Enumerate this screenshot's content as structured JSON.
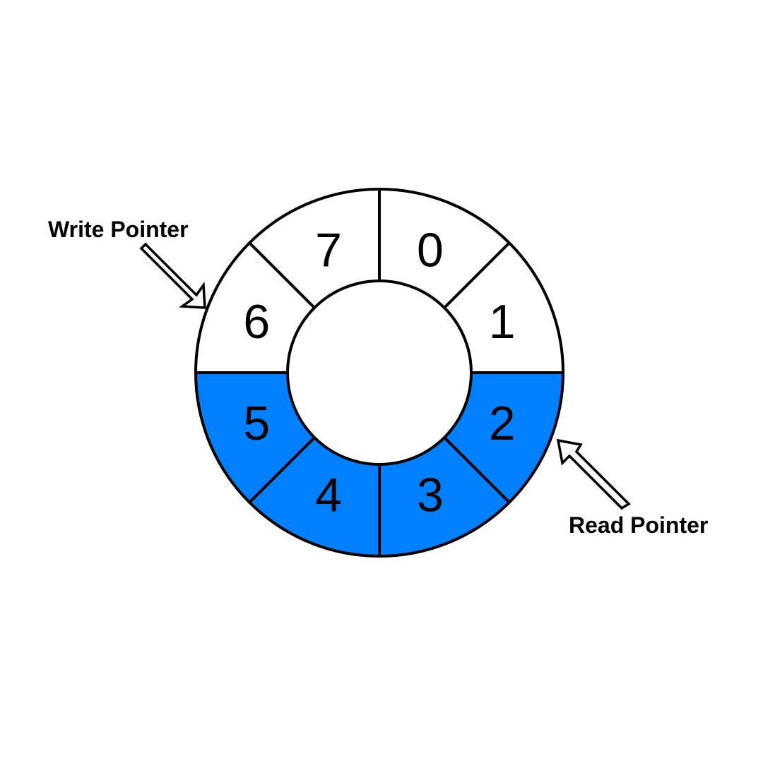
{
  "diagram": {
    "slots": [
      {
        "index": 0,
        "label": "0",
        "filled": false
      },
      {
        "index": 1,
        "label": "1",
        "filled": false
      },
      {
        "index": 2,
        "label": "2",
        "filled": true
      },
      {
        "index": 3,
        "label": "3",
        "filled": true
      },
      {
        "index": 4,
        "label": "4",
        "filled": true
      },
      {
        "index": 5,
        "label": "5",
        "filled": true
      },
      {
        "index": 6,
        "label": "6",
        "filled": false
      },
      {
        "index": 7,
        "label": "7",
        "filled": false
      }
    ],
    "write_pointer": {
      "label": "Write Pointer",
      "slot": 6
    },
    "read_pointer": {
      "label": "Read Pointer",
      "slot": 2
    }
  },
  "colors": {
    "filled": "#0080FF",
    "empty": "#FFFFFF",
    "stroke": "#000000"
  }
}
